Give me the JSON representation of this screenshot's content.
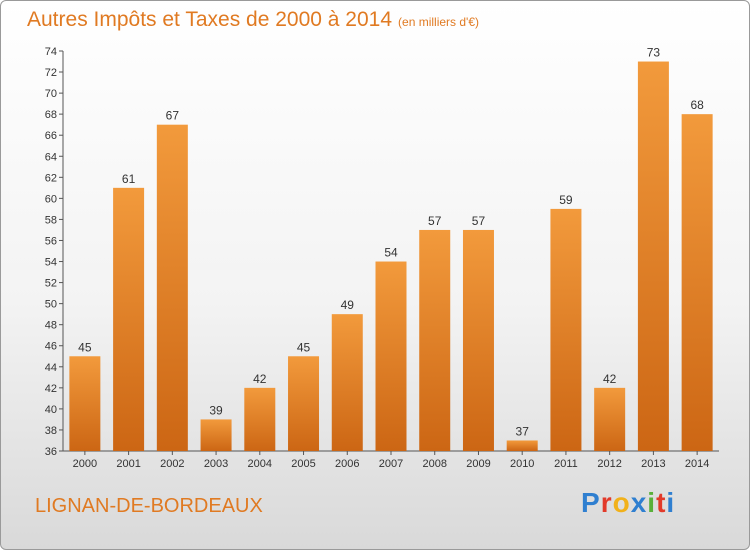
{
  "header": {
    "title": "Autres Impôts et Taxes de 2000 à 2014",
    "unit": "(en milliers d'€)"
  },
  "footer": {
    "location": "LIGNAN-DE-BORDEAUX",
    "brand": "Proxiti",
    "brand_colors": [
      "#2f7fd0",
      "#e23a2a",
      "#f1b11a",
      "#2f7fd0",
      "#59b03a",
      "#e23a2a"
    ]
  },
  "chart_data": {
    "type": "bar",
    "title": "Autres Impôts et Taxes de 2000 à 2014",
    "subtitle": "(en milliers d'€)",
    "categories": [
      "2000",
      "2001",
      "2002",
      "2003",
      "2004",
      "2005",
      "2006",
      "2007",
      "2008",
      "2009",
      "2010",
      "2011",
      "2012",
      "2013",
      "2014"
    ],
    "values": [
      45,
      61,
      67,
      39,
      42,
      45,
      49,
      54,
      57,
      57,
      37,
      59,
      42,
      73,
      68
    ],
    "ylim": [
      36,
      74
    ],
    "yticks": [
      36,
      38,
      40,
      42,
      44,
      46,
      48,
      50,
      52,
      54,
      56,
      58,
      60,
      62,
      64,
      66,
      68,
      70,
      72,
      74
    ],
    "grid": false,
    "bar_color": "#f29a3c",
    "bar_color_dark": "#cc6614"
  }
}
